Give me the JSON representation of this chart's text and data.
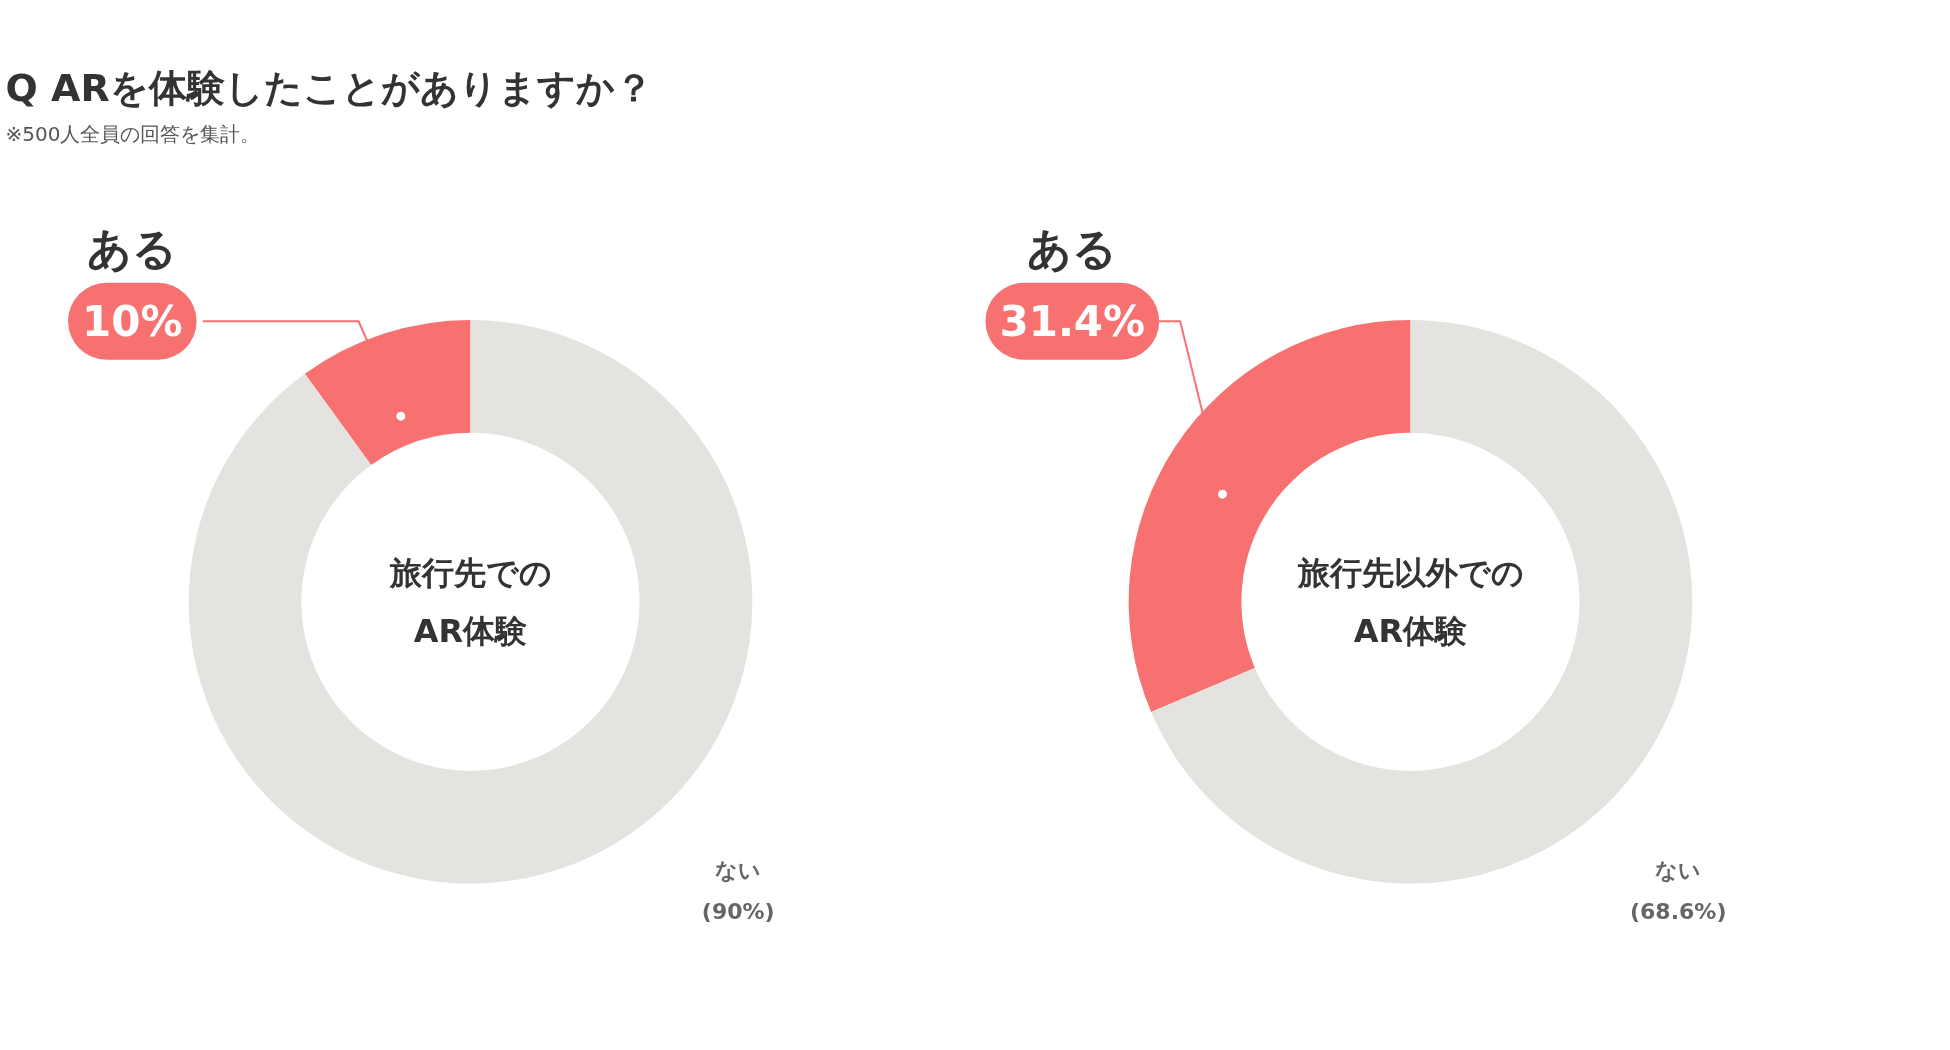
{
  "chart_data": [
    {
      "type": "donut",
      "title": "Q ARを体験したことがありますか？",
      "subtitle": "※500人全員の回答を集計。",
      "categories": [
        "ある",
        "ない"
      ],
      "values": [
        10,
        90
      ],
      "colors": [
        "#f87171",
        "#e5e3df"
      ],
      "value_labels": [
        "10%",
        "(90%)"
      ],
      "annotations": [
        "旅行先での",
        "AR体験"
      ]
    },
    {
      "type": "donut",
      "categories": [
        "ある",
        "ない"
      ],
      "values": [
        31.4,
        68.6
      ],
      "colors": [
        "#f87171",
        "#e5e3df"
      ],
      "value_labels": [
        "31.4%",
        "(68.6%)"
      ],
      "annotations": [
        "旅行先以外での",
        "AR体験"
      ]
    }
  ]
}
